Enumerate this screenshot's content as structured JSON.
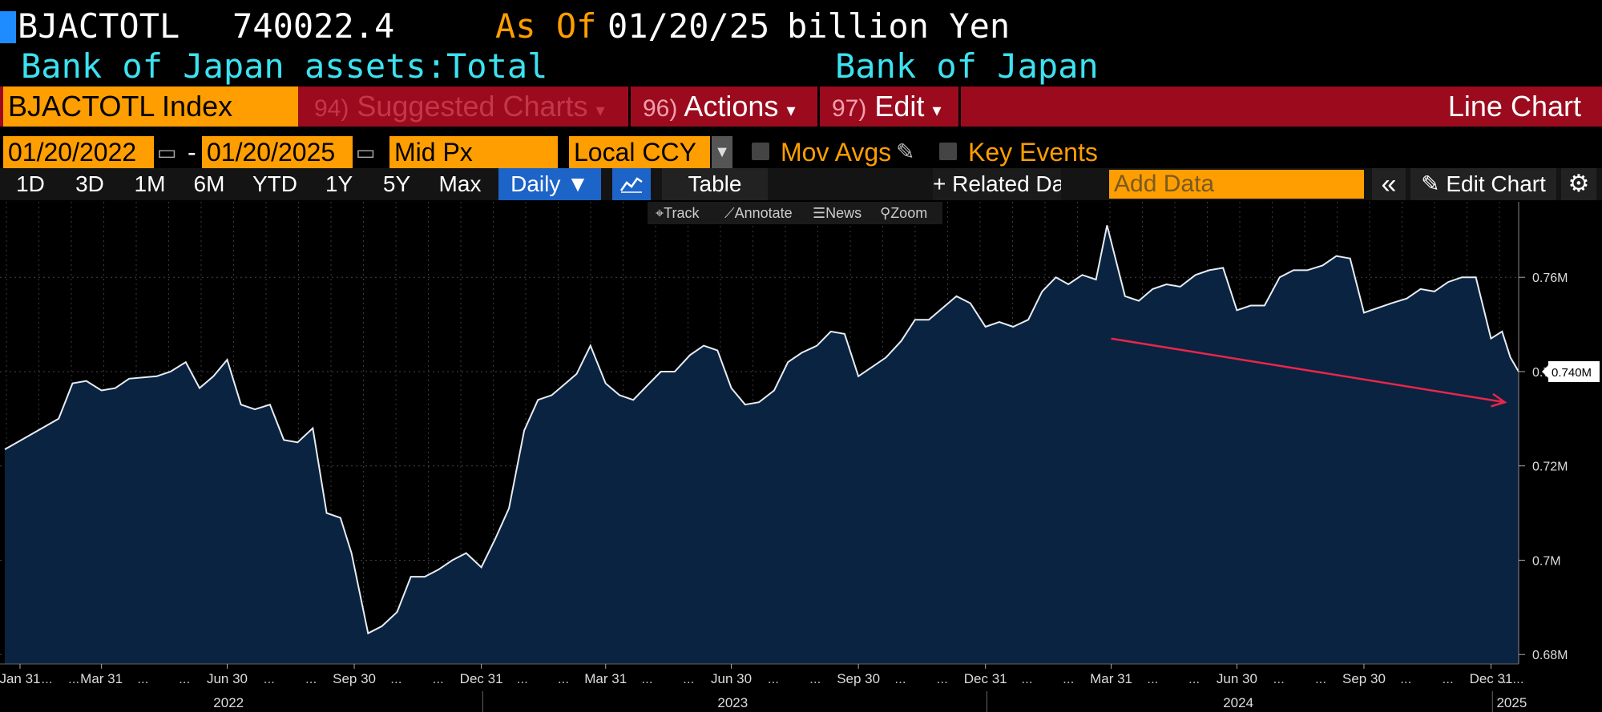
{
  "header": {
    "ticker": "BJACTOTL",
    "last_value": "740022.4",
    "as_of_label": "As Of",
    "as_of_date": "01/20/25",
    "units": "billion Yen",
    "description": "Bank of Japan assets:Total",
    "source": "Bank of Japan"
  },
  "command_bar": {
    "security": "BJACTOTL Index",
    "suggested_num": "94)",
    "suggested_label": "Suggested Charts",
    "actions_num": "96)",
    "actions_label": "Actions",
    "edit_num": "97)",
    "edit_label": "Edit",
    "chart_type": "Line Chart",
    "chevron": "▾"
  },
  "controls": {
    "start_date": "01/20/2022",
    "dash": "-",
    "end_date": "01/20/2025",
    "price_field": "Mid Px",
    "currency": "Local CCY",
    "mov_avgs": "Mov Avgs",
    "key_events": "Key Events"
  },
  "range_bar": {
    "buttons": [
      "1D",
      "3D",
      "1M",
      "6M",
      "YTD",
      "1Y",
      "5Y",
      "Max"
    ],
    "daily": "Daily ▼",
    "table": "Table",
    "related": "+ Related Data",
    "add_data_placeholder": "Add Data",
    "collapse": "«",
    "edit_chart": "Edit Chart"
  },
  "toolbar": {
    "track": "Track",
    "annotate": "Annotate",
    "news": "News",
    "zoom": "Zoom"
  },
  "colors": {
    "orange": "#ff9e00",
    "cyan": "#3ce2f0",
    "red_bar": "#9c0a1e",
    "area_fill": "#0a2340",
    "line": "#e8ecf2",
    "trend_arrow": "#e8264a",
    "selected_blue": "#1d64c8"
  },
  "chart_data": {
    "type": "area",
    "title": "",
    "xlabel": "",
    "ylabel": "",
    "ylim": [
      0.678,
      0.776
    ],
    "y_ticks": [
      0.68,
      0.7,
      0.72,
      0.74,
      0.76
    ],
    "y_tick_labels": [
      "0.68M",
      "0.7M",
      "0.72M",
      "0.74M",
      "0.76M"
    ],
    "last_value_label": "0.740M",
    "x_tick_labels": [
      "Jan 31",
      "Mar 31",
      "Jun 30",
      "Sep 30",
      "Dec 31",
      "Mar 31",
      "Jun 30",
      "Sep 30",
      "Dec 31",
      "Mar 31",
      "Jun 30",
      "Sep 30",
      "Dec 31"
    ],
    "x_tick_dates": [
      "2022-01-31",
      "2022-03-31",
      "2022-06-30",
      "2022-09-30",
      "2022-12-31",
      "2023-03-31",
      "2023-06-30",
      "2023-09-30",
      "2023-12-31",
      "2024-03-31",
      "2024-06-30",
      "2024-09-30",
      "2024-12-31"
    ],
    "ellipsis": "...",
    "year_labels": [
      "2022",
      "2023",
      "2024",
      "2025"
    ],
    "year_dates": [
      "2022-07-01",
      "2023-07-01",
      "2024-07-01",
      "2025-01-15"
    ],
    "grid": true,
    "series": [
      {
        "values": [
          [
            "2022-01-20",
            0.7235
          ],
          [
            "2022-02-10",
            0.727
          ],
          [
            "2022-02-28",
            0.73
          ],
          [
            "2022-03-10",
            0.7375
          ],
          [
            "2022-03-20",
            0.738
          ],
          [
            "2022-03-31",
            0.736
          ],
          [
            "2022-04-10",
            0.7365
          ],
          [
            "2022-04-20",
            0.7385
          ],
          [
            "2022-05-10",
            0.739
          ],
          [
            "2022-05-20",
            0.74
          ],
          [
            "2022-05-31",
            0.742
          ],
          [
            "2022-06-10",
            0.7365
          ],
          [
            "2022-06-20",
            0.739
          ],
          [
            "2022-06-30",
            0.7425
          ],
          [
            "2022-07-10",
            0.733
          ],
          [
            "2022-07-20",
            0.732
          ],
          [
            "2022-07-31",
            0.733
          ],
          [
            "2022-08-10",
            0.7255
          ],
          [
            "2022-08-20",
            0.725
          ],
          [
            "2022-08-31",
            0.728
          ],
          [
            "2022-09-10",
            0.71
          ],
          [
            "2022-09-20",
            0.709
          ],
          [
            "2022-09-28",
            0.7015
          ],
          [
            "2022-10-10",
            0.6845
          ],
          [
            "2022-10-20",
            0.686
          ],
          [
            "2022-10-31",
            0.689
          ],
          [
            "2022-11-10",
            0.6965
          ],
          [
            "2022-11-20",
            0.6965
          ],
          [
            "2022-11-30",
            0.698
          ],
          [
            "2022-12-10",
            0.7
          ],
          [
            "2022-12-20",
            0.7015
          ],
          [
            "2022-12-31",
            0.6985
          ],
          [
            "2023-01-10",
            0.7045
          ],
          [
            "2023-01-20",
            0.711
          ],
          [
            "2023-01-31",
            0.7275
          ],
          [
            "2023-02-10",
            0.734
          ],
          [
            "2023-02-20",
            0.735
          ],
          [
            "2023-02-28",
            0.737
          ],
          [
            "2023-03-10",
            0.7395
          ],
          [
            "2023-03-20",
            0.7455
          ],
          [
            "2023-03-31",
            0.7375
          ],
          [
            "2023-04-10",
            0.735
          ],
          [
            "2023-04-20",
            0.734
          ],
          [
            "2023-04-30",
            0.737
          ],
          [
            "2023-05-10",
            0.74
          ],
          [
            "2023-05-20",
            0.74
          ],
          [
            "2023-05-31",
            0.7435
          ],
          [
            "2023-06-10",
            0.7455
          ],
          [
            "2023-06-20",
            0.7445
          ],
          [
            "2023-06-30",
            0.7365
          ],
          [
            "2023-07-10",
            0.733
          ],
          [
            "2023-07-20",
            0.7335
          ],
          [
            "2023-07-31",
            0.736
          ],
          [
            "2023-08-10",
            0.742
          ],
          [
            "2023-08-20",
            0.744
          ],
          [
            "2023-08-31",
            0.7455
          ],
          [
            "2023-09-10",
            0.7485
          ],
          [
            "2023-09-20",
            0.748
          ],
          [
            "2023-09-30",
            0.739
          ],
          [
            "2023-10-10",
            0.741
          ],
          [
            "2023-10-20",
            0.743
          ],
          [
            "2023-10-31",
            0.7465
          ],
          [
            "2023-11-10",
            0.751
          ],
          [
            "2023-11-20",
            0.751
          ],
          [
            "2023-11-30",
            0.7535
          ],
          [
            "2023-12-10",
            0.756
          ],
          [
            "2023-12-20",
            0.7545
          ],
          [
            "2023-12-31",
            0.7495
          ],
          [
            "2024-01-10",
            0.7505
          ],
          [
            "2024-01-20",
            0.7495
          ],
          [
            "2024-01-31",
            0.751
          ],
          [
            "2024-02-10",
            0.757
          ],
          [
            "2024-02-20",
            0.76
          ],
          [
            "2024-02-29",
            0.7585
          ],
          [
            "2024-03-10",
            0.7605
          ],
          [
            "2024-03-20",
            0.7595
          ],
          [
            "2024-03-28",
            0.771
          ],
          [
            "2024-04-10",
            0.756
          ],
          [
            "2024-04-20",
            0.755
          ],
          [
            "2024-04-30",
            0.7575
          ],
          [
            "2024-05-10",
            0.7585
          ],
          [
            "2024-05-20",
            0.758
          ],
          [
            "2024-05-31",
            0.7605
          ],
          [
            "2024-06-10",
            0.7615
          ],
          [
            "2024-06-20",
            0.762
          ],
          [
            "2024-06-30",
            0.753
          ],
          [
            "2024-07-10",
            0.754
          ],
          [
            "2024-07-20",
            0.754
          ],
          [
            "2024-07-31",
            0.76
          ],
          [
            "2024-08-10",
            0.7615
          ],
          [
            "2024-08-20",
            0.7615
          ],
          [
            "2024-08-31",
            0.7625
          ],
          [
            "2024-09-10",
            0.7645
          ],
          [
            "2024-09-20",
            0.764
          ],
          [
            "2024-09-30",
            0.7525
          ],
          [
            "2024-10-10",
            0.7535
          ],
          [
            "2024-10-20",
            0.7545
          ],
          [
            "2024-10-31",
            0.7555
          ],
          [
            "2024-11-10",
            0.7575
          ],
          [
            "2024-11-20",
            0.757
          ],
          [
            "2024-11-30",
            0.759
          ],
          [
            "2024-12-10",
            0.76
          ],
          [
            "2024-12-20",
            0.76
          ],
          [
            "2024-12-31",
            0.747
          ],
          [
            "2025-01-08",
            0.7485
          ],
          [
            "2025-01-14",
            0.743
          ],
          [
            "2025-01-20",
            0.74
          ]
        ]
      }
    ],
    "annotations": [
      {
        "type": "arrow",
        "from": [
          "2024-03-31",
          0.747
        ],
        "to": [
          "2025-01-10",
          0.7335
        ]
      }
    ]
  }
}
